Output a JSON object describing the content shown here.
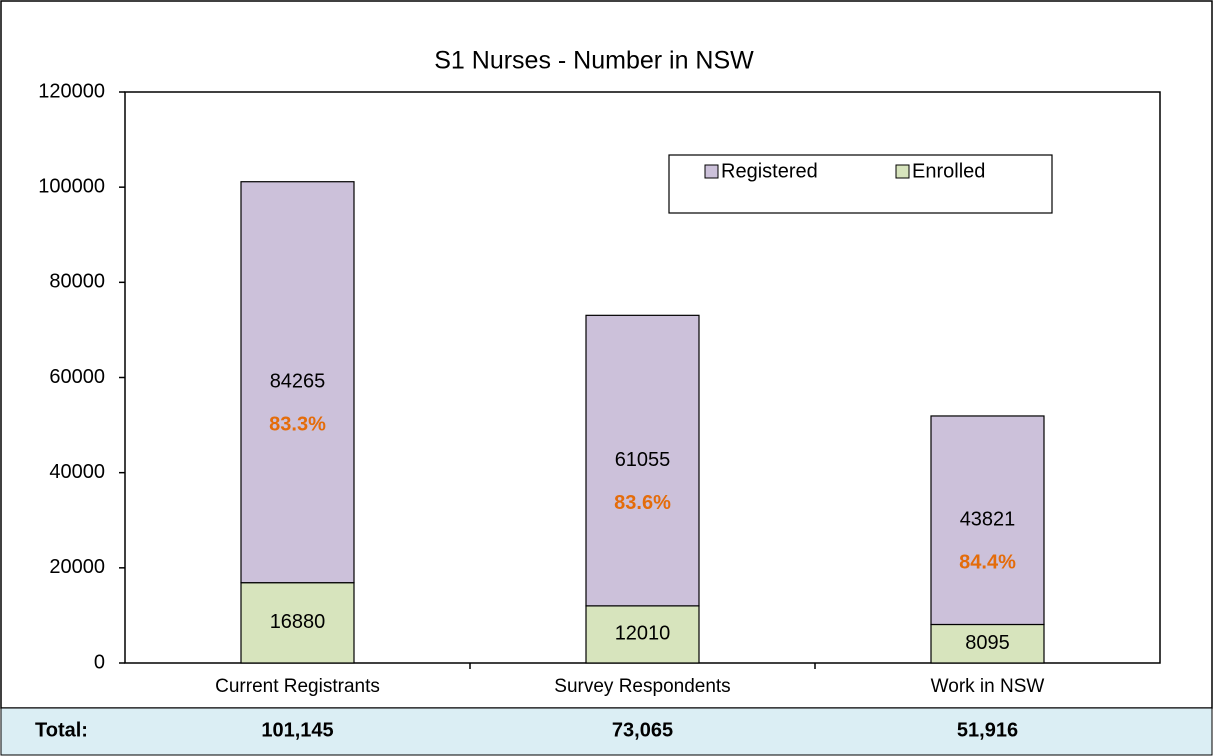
{
  "chart_data": {
    "type": "stacked_bar",
    "title": "S1 Nurses - Number in NSW",
    "categories": [
      "Current Registrants",
      "Survey Respondents",
      "Work in NSW"
    ],
    "series": [
      {
        "name": "Enrolled",
        "color": "#d7e4bd",
        "values": [
          16880,
          12010,
          8095
        ]
      },
      {
        "name": "Registered",
        "color": "#ccc1da",
        "values": [
          84265,
          61055,
          43821
        ]
      }
    ],
    "annotations": [
      "83.3%",
      "83.6%",
      "84.4%"
    ],
    "ylim": [
      0,
      120000
    ],
    "yticks": [
      0,
      20000,
      40000,
      60000,
      80000,
      100000,
      120000
    ],
    "legend": "upper right"
  },
  "totals": {
    "label": "Total:",
    "values": [
      "101,145",
      "73,065",
      "51,916"
    ]
  }
}
